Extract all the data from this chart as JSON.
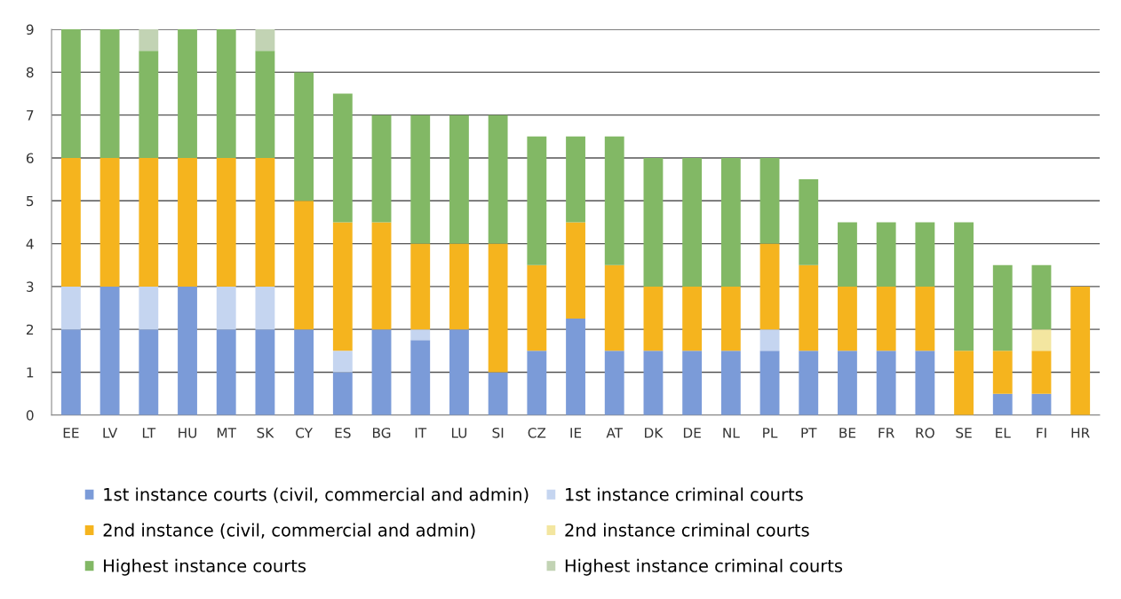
{
  "chart_data": {
    "type": "bar",
    "stacked": true,
    "categories": [
      "EE",
      "LV",
      "LT",
      "HU",
      "MT",
      "SK",
      "CY",
      "ES",
      "BG",
      "IT",
      "LU",
      "SI",
      "CZ",
      "IE",
      "AT",
      "DK",
      "DE",
      "NL",
      "PL",
      "PT",
      "BE",
      "FR",
      "RO",
      "SE",
      "EL",
      "FI",
      "HR"
    ],
    "series": [
      {
        "name": "1st instance courts (civil, commercial and admin)",
        "color": "#7b9bd8",
        "values": [
          2,
          3,
          2,
          3,
          2,
          2,
          2,
          1,
          2,
          1.75,
          2,
          1,
          1.5,
          2.25,
          1.5,
          1.5,
          1.5,
          1.5,
          1.5,
          1.5,
          1.5,
          1.5,
          1.5,
          null,
          0.5,
          0.5,
          null
        ]
      },
      {
        "name": "1st instance criminal courts",
        "color": "#c5d5f0",
        "values": [
          1,
          null,
          1,
          null,
          1,
          1,
          null,
          0.5,
          null,
          0.25,
          null,
          null,
          null,
          null,
          null,
          null,
          null,
          null,
          0.5,
          null,
          null,
          null,
          null,
          null,
          null,
          null,
          null
        ]
      },
      {
        "name": "2nd instance (civil, commercial and admin)",
        "color": "#f5b41e",
        "values": [
          3,
          3,
          3,
          3,
          3,
          3,
          3,
          3,
          2.5,
          2,
          2,
          3,
          2,
          2.25,
          2,
          1.5,
          1.5,
          1.5,
          2,
          2,
          1.5,
          1.5,
          1.5,
          1.5,
          1,
          1,
          3
        ]
      },
      {
        "name": "2nd instance criminal courts",
        "color": "#f3e6a0",
        "values": [
          null,
          null,
          null,
          null,
          null,
          null,
          null,
          null,
          null,
          null,
          null,
          null,
          null,
          null,
          null,
          null,
          null,
          null,
          null,
          null,
          null,
          null,
          null,
          null,
          null,
          0.5,
          null
        ]
      },
      {
        "name": "Highest instance courts",
        "color": "#82b865",
        "values": [
          3,
          3,
          2.5,
          3,
          3,
          2.5,
          3,
          3,
          2.5,
          3,
          3,
          3,
          3,
          2,
          3,
          3,
          3,
          3,
          2,
          2,
          1.5,
          1.5,
          1.5,
          3,
          2,
          1.5,
          null
        ]
      },
      {
        "name": "Highest instance criminal courts",
        "color": "#c2d3b4",
        "values": [
          null,
          null,
          0.5,
          null,
          null,
          0.5,
          null,
          null,
          null,
          null,
          null,
          null,
          null,
          null,
          null,
          null,
          null,
          null,
          null,
          null,
          null,
          null,
          null,
          null,
          null,
          null,
          null
        ]
      }
    ],
    "ylim": [
      0,
      9
    ],
    "yticks": [
      0,
      1,
      2,
      3,
      4,
      5,
      6,
      7,
      8,
      9
    ],
    "grid": "y",
    "legend": "bottom"
  }
}
